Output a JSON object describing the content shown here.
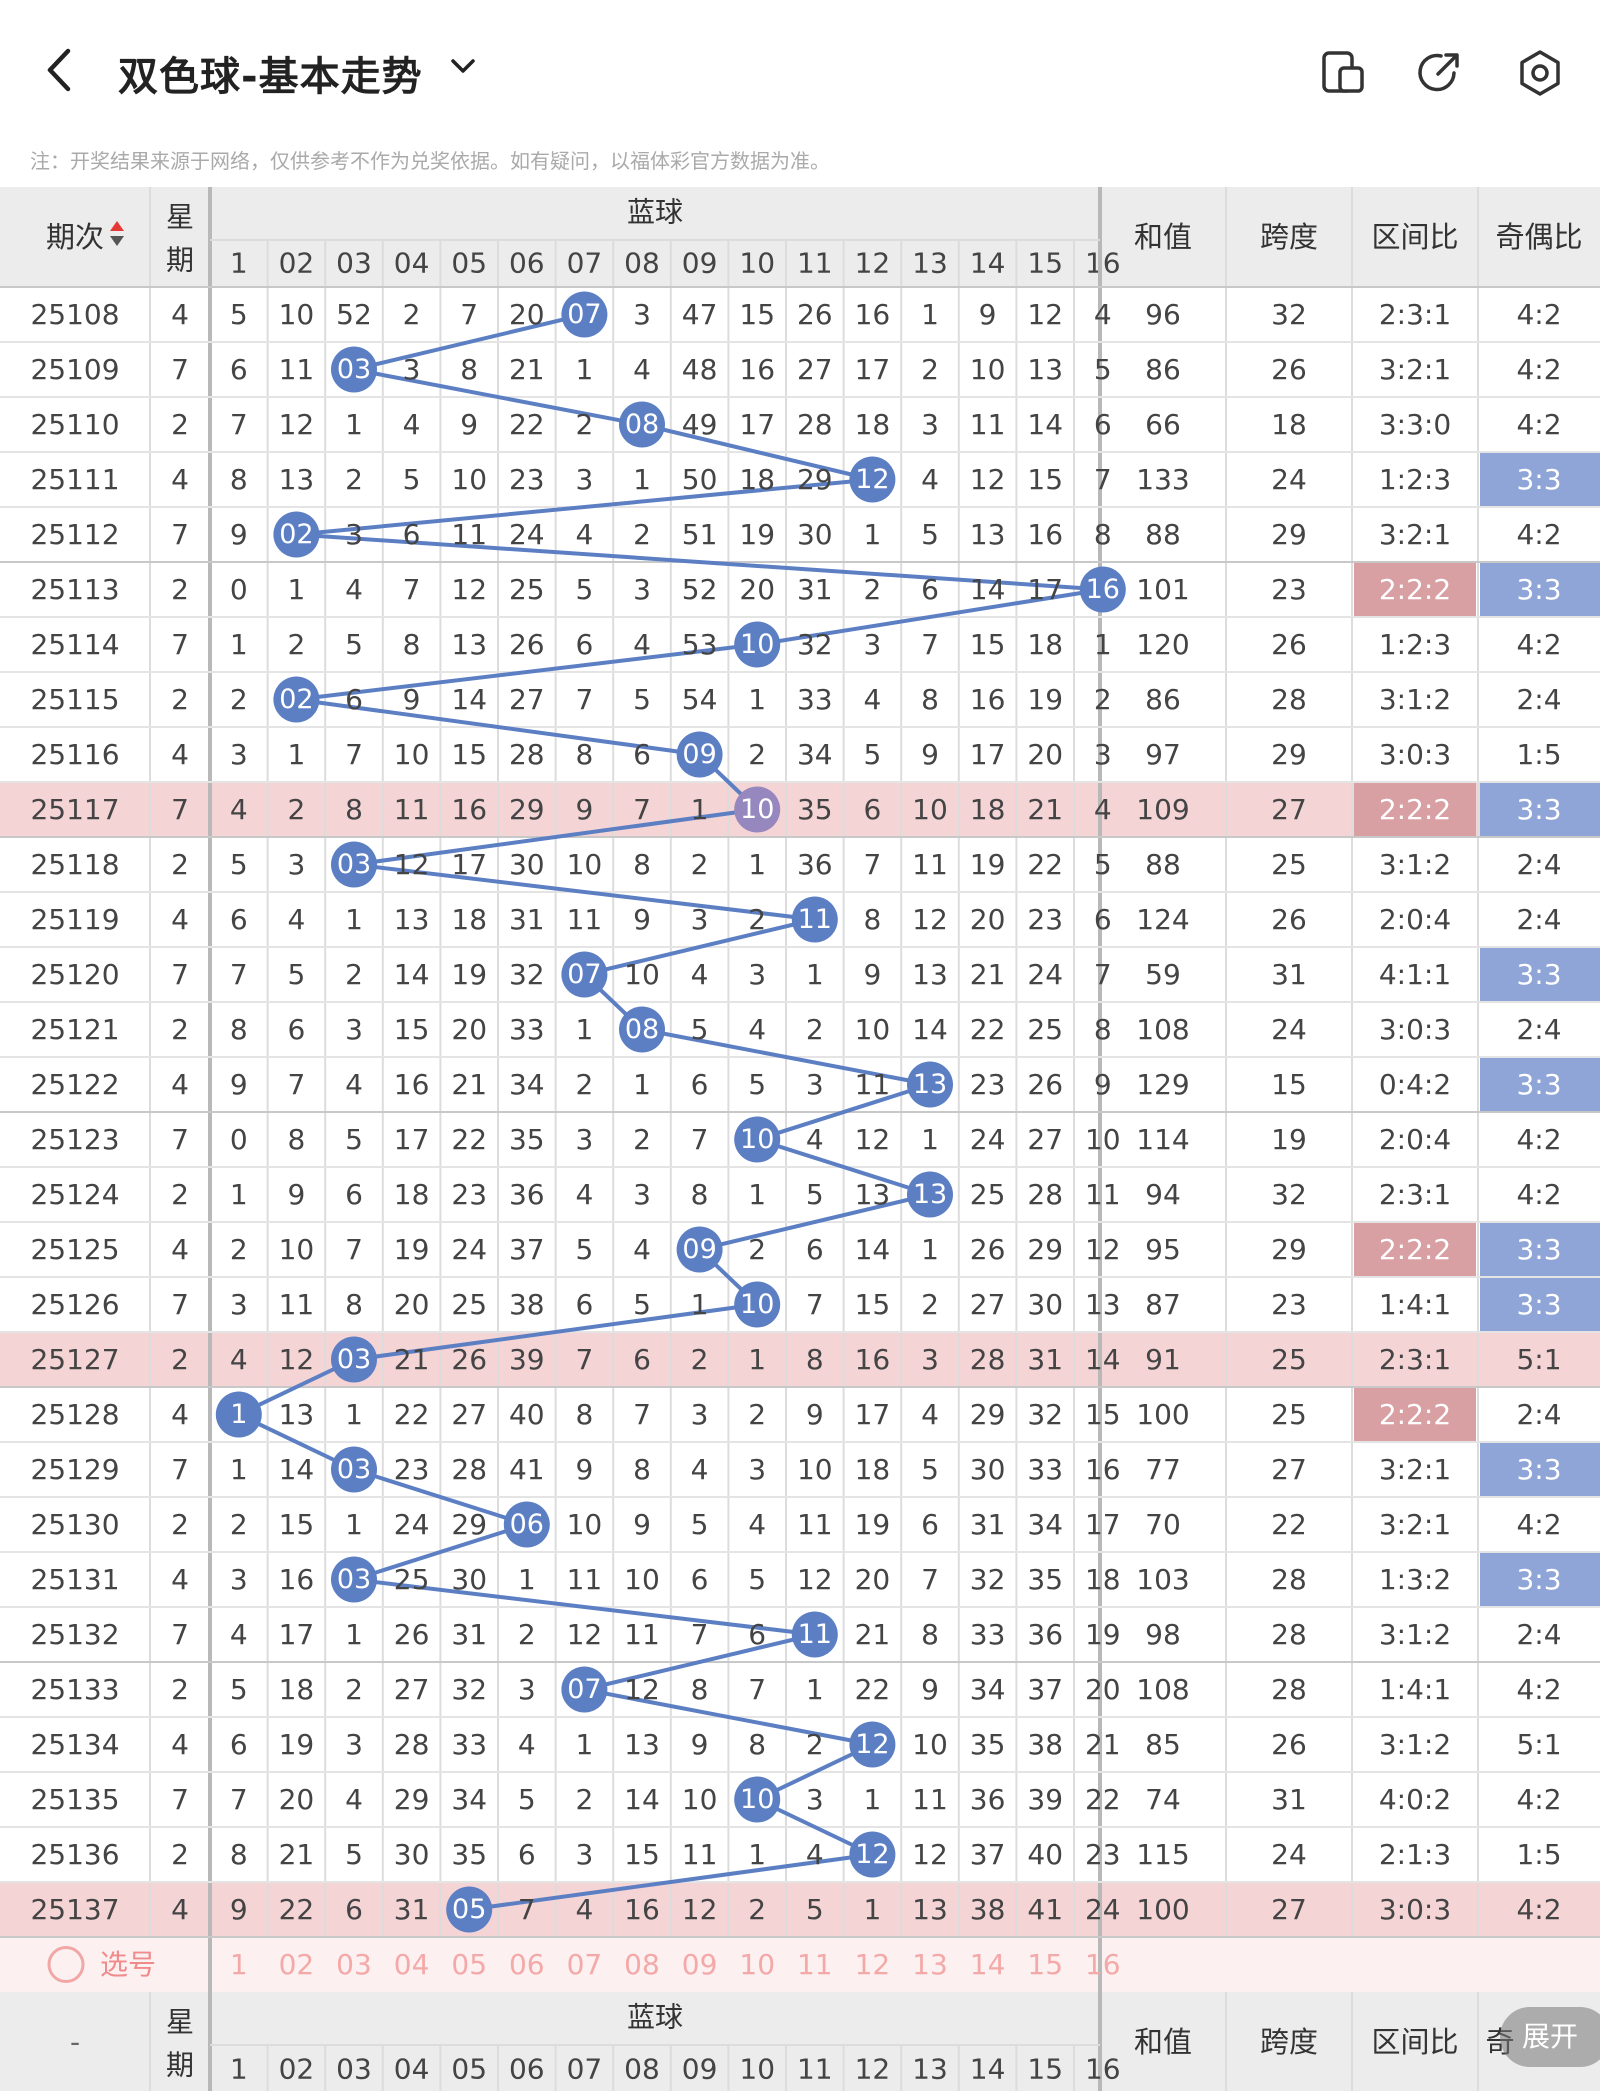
{
  "header": {
    "title": "双色球-基本走势",
    "icons": [
      "back-icon",
      "chevron-down-icon",
      "device-icon",
      "share-icon",
      "settings-icon"
    ]
  },
  "note": "注：开奖结果来源于网络，仅供参考不作为兑奖依据。如有疑问，以福体彩官方数据为准。",
  "table": {
    "head": {
      "issue": "期次",
      "week": "星期",
      "blue": "蓝球",
      "sum": "和值",
      "span": "跨度",
      "zone": "区间比",
      "odd": "奇偶比"
    },
    "blue_cols": [
      "1",
      "02",
      "03",
      "04",
      "05",
      "06",
      "07",
      "08",
      "09",
      "10",
      "11",
      "12",
      "13",
      "14",
      "15",
      "16"
    ],
    "rows": [
      {
        "issue": "25108",
        "week": "4",
        "cells": [
          "5",
          "10",
          "52",
          "2",
          "7",
          "20",
          "07",
          "3",
          "47",
          "15",
          "26",
          "16",
          "1",
          "9",
          "12",
          "4"
        ],
        "blue": 7,
        "sum": "96",
        "span": "32",
        "zone": "2:3:1",
        "odd": "4:2",
        "hl": false,
        "zone_hl": false,
        "odd_hl": false
      },
      {
        "issue": "25109",
        "week": "7",
        "cells": [
          "6",
          "11",
          "03",
          "3",
          "8",
          "21",
          "1",
          "4",
          "48",
          "16",
          "27",
          "17",
          "2",
          "10",
          "13",
          "5"
        ],
        "blue": 3,
        "sum": "86",
        "span": "26",
        "zone": "3:2:1",
        "odd": "4:2",
        "hl": false,
        "zone_hl": false,
        "odd_hl": false
      },
      {
        "issue": "25110",
        "week": "2",
        "cells": [
          "7",
          "12",
          "1",
          "4",
          "9",
          "22",
          "2",
          "08",
          "49",
          "17",
          "28",
          "18",
          "3",
          "11",
          "14",
          "6"
        ],
        "blue": 8,
        "sum": "66",
        "span": "18",
        "zone": "3:3:0",
        "odd": "4:2",
        "hl": false,
        "zone_hl": false,
        "odd_hl": false
      },
      {
        "issue": "25111",
        "week": "4",
        "cells": [
          "8",
          "13",
          "2",
          "5",
          "10",
          "23",
          "3",
          "1",
          "50",
          "18",
          "29",
          "12",
          "4",
          "12",
          "15",
          "7"
        ],
        "blue": 12,
        "sum": "133",
        "span": "24",
        "zone": "1:2:3",
        "odd": "3:3",
        "hl": false,
        "zone_hl": false,
        "odd_hl": true
      },
      {
        "issue": "25112",
        "week": "7",
        "cells": [
          "9",
          "02",
          "3",
          "6",
          "11",
          "24",
          "4",
          "2",
          "51",
          "19",
          "30",
          "1",
          "5",
          "13",
          "16",
          "8"
        ],
        "blue": 2,
        "sum": "88",
        "span": "29",
        "zone": "3:2:1",
        "odd": "4:2",
        "hl": false,
        "zone_hl": false,
        "odd_hl": false
      },
      {
        "issue": "25113",
        "week": "2",
        "cells": [
          "0",
          "1",
          "4",
          "7",
          "12",
          "25",
          "5",
          "3",
          "52",
          "20",
          "31",
          "2",
          "6",
          "14",
          "17",
          "16"
        ],
        "blue": 16,
        "sum": "101",
        "span": "23",
        "zone": "2:2:2",
        "odd": "3:3",
        "hl": false,
        "zone_hl": true,
        "odd_hl": true
      },
      {
        "issue": "25114",
        "week": "7",
        "cells": [
          "1",
          "2",
          "5",
          "8",
          "13",
          "26",
          "6",
          "4",
          "53",
          "10",
          "32",
          "3",
          "7",
          "15",
          "18",
          "1"
        ],
        "blue": 10,
        "sum": "120",
        "span": "26",
        "zone": "1:2:3",
        "odd": "4:2",
        "hl": false,
        "zone_hl": false,
        "odd_hl": false
      },
      {
        "issue": "25115",
        "week": "2",
        "cells": [
          "2",
          "02",
          "6",
          "9",
          "14",
          "27",
          "7",
          "5",
          "54",
          "1",
          "33",
          "4",
          "8",
          "16",
          "19",
          "2"
        ],
        "blue": 2,
        "sum": "86",
        "span": "28",
        "zone": "3:1:2",
        "odd": "2:4",
        "hl": false,
        "zone_hl": false,
        "odd_hl": false
      },
      {
        "issue": "25116",
        "week": "4",
        "cells": [
          "3",
          "1",
          "7",
          "10",
          "15",
          "28",
          "8",
          "6",
          "09",
          "2",
          "34",
          "5",
          "9",
          "17",
          "20",
          "3"
        ],
        "blue": 9,
        "sum": "97",
        "span": "29",
        "zone": "3:0:3",
        "odd": "1:5",
        "hl": false,
        "zone_hl": false,
        "odd_hl": false
      },
      {
        "issue": "25117",
        "week": "7",
        "cells": [
          "4",
          "2",
          "8",
          "11",
          "16",
          "29",
          "9",
          "7",
          "1",
          "10",
          "35",
          "6",
          "10",
          "18",
          "21",
          "4"
        ],
        "blue": 10,
        "sum": "109",
        "span": "27",
        "zone": "2:2:2",
        "odd": "3:3",
        "hl": true,
        "zone_hl": true,
        "odd_hl": true
      },
      {
        "issue": "25118",
        "week": "2",
        "cells": [
          "5",
          "3",
          "03",
          "12",
          "17",
          "30",
          "10",
          "8",
          "2",
          "1",
          "36",
          "7",
          "11",
          "19",
          "22",
          "5"
        ],
        "blue": 3,
        "sum": "88",
        "span": "25",
        "zone": "3:1:2",
        "odd": "2:4",
        "hl": false,
        "zone_hl": false,
        "odd_hl": false
      },
      {
        "issue": "25119",
        "week": "4",
        "cells": [
          "6",
          "4",
          "1",
          "13",
          "18",
          "31",
          "11",
          "9",
          "3",
          "2",
          "11",
          "8",
          "12",
          "20",
          "23",
          "6"
        ],
        "blue": 11,
        "sum": "124",
        "span": "26",
        "zone": "2:0:4",
        "odd": "2:4",
        "hl": false,
        "zone_hl": false,
        "odd_hl": false
      },
      {
        "issue": "25120",
        "week": "7",
        "cells": [
          "7",
          "5",
          "2",
          "14",
          "19",
          "32",
          "07",
          "10",
          "4",
          "3",
          "1",
          "9",
          "13",
          "21",
          "24",
          "7"
        ],
        "blue": 7,
        "sum": "59",
        "span": "31",
        "zone": "4:1:1",
        "odd": "3:3",
        "hl": false,
        "zone_hl": false,
        "odd_hl": true
      },
      {
        "issue": "25121",
        "week": "2",
        "cells": [
          "8",
          "6",
          "3",
          "15",
          "20",
          "33",
          "1",
          "08",
          "5",
          "4",
          "2",
          "10",
          "14",
          "22",
          "25",
          "8"
        ],
        "blue": 8,
        "sum": "108",
        "span": "24",
        "zone": "3:0:3",
        "odd": "2:4",
        "hl": false,
        "zone_hl": false,
        "odd_hl": false
      },
      {
        "issue": "25122",
        "week": "4",
        "cells": [
          "9",
          "7",
          "4",
          "16",
          "21",
          "34",
          "2",
          "1",
          "6",
          "5",
          "3",
          "11",
          "13",
          "23",
          "26",
          "9"
        ],
        "blue": 13,
        "sum": "129",
        "span": "15",
        "zone": "0:4:2",
        "odd": "3:3",
        "hl": false,
        "zone_hl": false,
        "odd_hl": true
      },
      {
        "issue": "25123",
        "week": "7",
        "cells": [
          "0",
          "8",
          "5",
          "17",
          "22",
          "35",
          "3",
          "2",
          "7",
          "10",
          "4",
          "12",
          "1",
          "24",
          "27",
          "10"
        ],
        "blue": 10,
        "sum": "114",
        "span": "19",
        "zone": "2:0:4",
        "odd": "4:2",
        "hl": false,
        "zone_hl": false,
        "odd_hl": false
      },
      {
        "issue": "25124",
        "week": "2",
        "cells": [
          "1",
          "9",
          "6",
          "18",
          "23",
          "36",
          "4",
          "3",
          "8",
          "1",
          "5",
          "13",
          "13",
          "25",
          "28",
          "11"
        ],
        "blue": 13,
        "sum": "94",
        "span": "32",
        "zone": "2:3:1",
        "odd": "4:2",
        "hl": false,
        "zone_hl": false,
        "odd_hl": false
      },
      {
        "issue": "25125",
        "week": "4",
        "cells": [
          "2",
          "10",
          "7",
          "19",
          "24",
          "37",
          "5",
          "4",
          "09",
          "2",
          "6",
          "14",
          "1",
          "26",
          "29",
          "12"
        ],
        "blue": 9,
        "sum": "95",
        "span": "29",
        "zone": "2:2:2",
        "odd": "3:3",
        "hl": false,
        "zone_hl": true,
        "odd_hl": true
      },
      {
        "issue": "25126",
        "week": "7",
        "cells": [
          "3",
          "11",
          "8",
          "20",
          "25",
          "38",
          "6",
          "5",
          "1",
          "10",
          "7",
          "15",
          "2",
          "27",
          "30",
          "13"
        ],
        "blue": 10,
        "sum": "87",
        "span": "23",
        "zone": "1:4:1",
        "odd": "3:3",
        "hl": false,
        "zone_hl": false,
        "odd_hl": true
      },
      {
        "issue": "25127",
        "week": "2",
        "cells": [
          "4",
          "12",
          "03",
          "21",
          "26",
          "39",
          "7",
          "6",
          "2",
          "1",
          "8",
          "16",
          "3",
          "28",
          "31",
          "14"
        ],
        "blue": 3,
        "sum": "91",
        "span": "25",
        "zone": "2:3:1",
        "odd": "5:1",
        "hl": true,
        "zone_hl": false,
        "odd_hl": false
      },
      {
        "issue": "25128",
        "week": "4",
        "cells": [
          "1",
          "13",
          "1",
          "22",
          "27",
          "40",
          "8",
          "7",
          "3",
          "2",
          "9",
          "17",
          "4",
          "29",
          "32",
          "15"
        ],
        "blue": 1,
        "sum": "100",
        "span": "25",
        "zone": "2:2:2",
        "odd": "2:4",
        "hl": false,
        "zone_hl": true,
        "odd_hl": false
      },
      {
        "issue": "25129",
        "week": "7",
        "cells": [
          "1",
          "14",
          "03",
          "23",
          "28",
          "41",
          "9",
          "8",
          "4",
          "3",
          "10",
          "18",
          "5",
          "30",
          "33",
          "16"
        ],
        "blue": 3,
        "sum": "77",
        "span": "27",
        "zone": "3:2:1",
        "odd": "3:3",
        "hl": false,
        "zone_hl": false,
        "odd_hl": true
      },
      {
        "issue": "25130",
        "week": "2",
        "cells": [
          "2",
          "15",
          "1",
          "24",
          "29",
          "06",
          "10",
          "9",
          "5",
          "4",
          "11",
          "19",
          "6",
          "31",
          "34",
          "17"
        ],
        "blue": 6,
        "sum": "70",
        "span": "22",
        "zone": "3:2:1",
        "odd": "4:2",
        "hl": false,
        "zone_hl": false,
        "odd_hl": false
      },
      {
        "issue": "25131",
        "week": "4",
        "cells": [
          "3",
          "16",
          "03",
          "25",
          "30",
          "1",
          "11",
          "10",
          "6",
          "5",
          "12",
          "20",
          "7",
          "32",
          "35",
          "18"
        ],
        "blue": 3,
        "sum": "103",
        "span": "28",
        "zone": "1:3:2",
        "odd": "3:3",
        "hl": false,
        "zone_hl": false,
        "odd_hl": true
      },
      {
        "issue": "25132",
        "week": "7",
        "cells": [
          "4",
          "17",
          "1",
          "26",
          "31",
          "2",
          "12",
          "11",
          "7",
          "6",
          "11",
          "21",
          "8",
          "33",
          "36",
          "19"
        ],
        "blue": 11,
        "sum": "98",
        "span": "28",
        "zone": "3:1:2",
        "odd": "2:4",
        "hl": false,
        "zone_hl": false,
        "odd_hl": false
      },
      {
        "issue": "25133",
        "week": "2",
        "cells": [
          "5",
          "18",
          "2",
          "27",
          "32",
          "3",
          "07",
          "12",
          "8",
          "7",
          "1",
          "22",
          "9",
          "34",
          "37",
          "20"
        ],
        "blue": 7,
        "sum": "108",
        "span": "28",
        "zone": "1:4:1",
        "odd": "4:2",
        "hl": false,
        "zone_hl": false,
        "odd_hl": false
      },
      {
        "issue": "25134",
        "week": "4",
        "cells": [
          "6",
          "19",
          "3",
          "28",
          "33",
          "4",
          "1",
          "13",
          "9",
          "8",
          "2",
          "12",
          "10",
          "35",
          "38",
          "21"
        ],
        "blue": 12,
        "sum": "85",
        "span": "26",
        "zone": "3:1:2",
        "odd": "5:1",
        "hl": false,
        "zone_hl": false,
        "odd_hl": false
      },
      {
        "issue": "25135",
        "week": "7",
        "cells": [
          "7",
          "20",
          "4",
          "29",
          "34",
          "5",
          "2",
          "14",
          "10",
          "10",
          "3",
          "1",
          "11",
          "36",
          "39",
          "22"
        ],
        "blue": 10,
        "sum": "74",
        "span": "31",
        "zone": "4:0:2",
        "odd": "4:2",
        "hl": false,
        "zone_hl": false,
        "odd_hl": false
      },
      {
        "issue": "25136",
        "week": "2",
        "cells": [
          "8",
          "21",
          "5",
          "30",
          "35",
          "6",
          "3",
          "15",
          "11",
          "1",
          "4",
          "12",
          "12",
          "37",
          "40",
          "23"
        ],
        "blue": 12,
        "sum": "115",
        "span": "24",
        "zone": "2:1:3",
        "odd": "1:5",
        "hl": false,
        "zone_hl": false,
        "odd_hl": false
      },
      {
        "issue": "25137",
        "week": "4",
        "cells": [
          "9",
          "22",
          "6",
          "31",
          "05",
          "7",
          "4",
          "16",
          "12",
          "2",
          "5",
          "1",
          "13",
          "38",
          "41",
          "24"
        ],
        "blue": 5,
        "sum": "100",
        "span": "27",
        "zone": "3:0:3",
        "odd": "4:2",
        "hl": true,
        "zone_hl": false,
        "odd_hl": false
      }
    ],
    "select_label": "选号",
    "footer": {
      "issue": "-",
      "week": "星期",
      "blue": "蓝球",
      "sum": "和值",
      "span": "跨度",
      "zone": "区间比",
      "odd": "奇"
    }
  },
  "expand_label": "展开",
  "colors": {
    "ball": "#5c7fc4",
    "line": "#5c7fc4",
    "row_highlight": "#f5d4d6",
    "zone_highlight": "#d9a0a4",
    "odd_highlight": "#8fa5d8",
    "purple_ball": "#9688bf"
  }
}
